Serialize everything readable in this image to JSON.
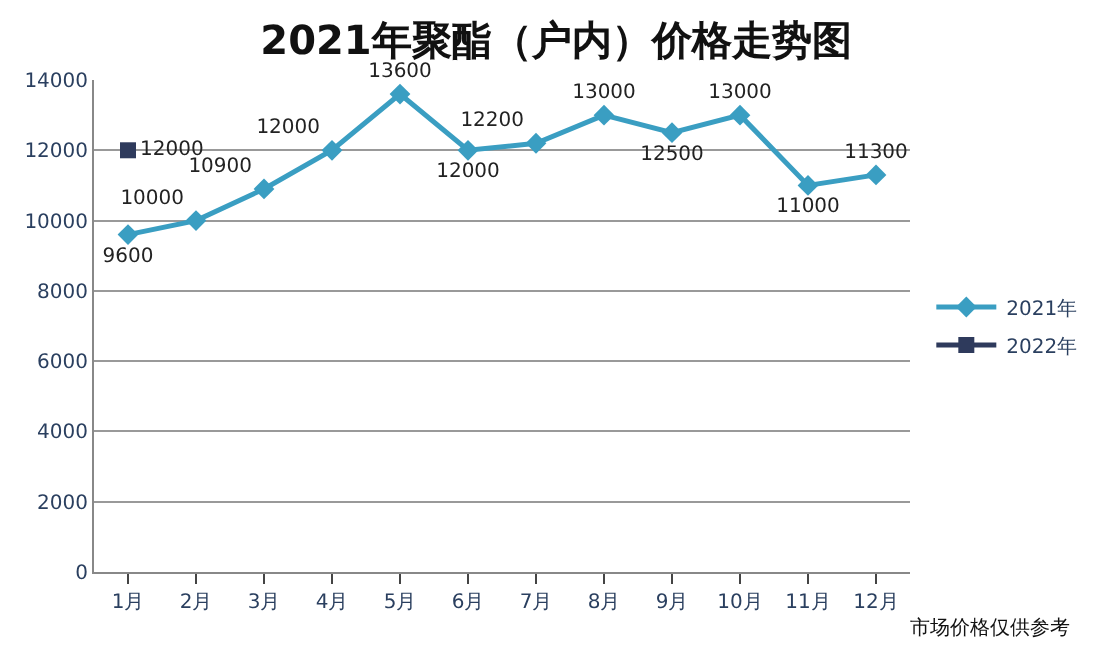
{
  "chart_data": {
    "type": "line",
    "title": "2021年聚酯（户内）价格走势图",
    "categories": [
      "1月",
      "2月",
      "3月",
      "4月",
      "5月",
      "6月",
      "7月",
      "8月",
      "9月",
      "10月",
      "11月",
      "12月"
    ],
    "series": [
      {
        "name": "2021年",
        "color": "#3a9ec2",
        "marker": "diamond",
        "values": [
          9600,
          10000,
          10900,
          12000,
          13600,
          12000,
          12200,
          13000,
          12500,
          13000,
          11000,
          11300
        ]
      },
      {
        "name": "2022年",
        "color": "#2e3a5c",
        "marker": "square",
        "values": [
          12000,
          null,
          null,
          null,
          null,
          null,
          null,
          null,
          null,
          null,
          null,
          null
        ]
      }
    ],
    "ylim": [
      0,
      14000
    ],
    "yticks": [
      0,
      2000,
      4000,
      6000,
      8000,
      10000,
      12000,
      14000
    ],
    "grid": "y",
    "legend": "right",
    "data_labels": true,
    "annotations": [
      "市场价格仅供参考"
    ]
  }
}
